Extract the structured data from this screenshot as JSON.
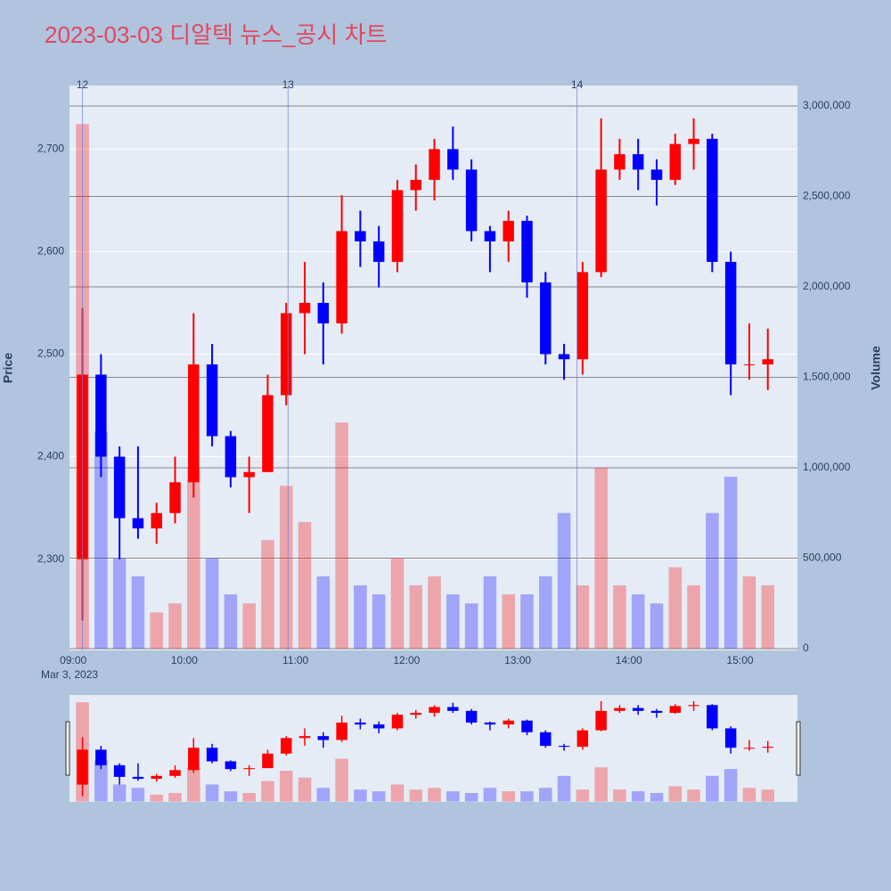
{
  "chart_data": {
    "type": "candlestick",
    "title": "2023-03-03 디알텍 뉴스_공시 차트",
    "y_title": "Price",
    "y2_title": "Volume",
    "x_date_label": "Mar 3, 2023",
    "increasing_color": "#ff0000",
    "decreasing_color": "#0000ff",
    "background": "#b0c4de",
    "plot_background": "#e5ecf6",
    "grid": true,
    "range_slider": true,
    "x": [
      "09:00",
      "09:10",
      "09:20",
      "09:30",
      "09:40",
      "09:50",
      "10:00",
      "10:10",
      "10:20",
      "10:30",
      "10:40",
      "10:50",
      "11:00",
      "11:10",
      "11:20",
      "11:30",
      "11:40",
      "11:50",
      "12:00",
      "12:10",
      "12:20",
      "12:30",
      "12:40",
      "12:50",
      "13:00",
      "13:10",
      "13:20",
      "13:30",
      "13:40",
      "13:50",
      "14:00",
      "14:10",
      "14:20",
      "14:30",
      "14:40",
      "14:50",
      "15:00",
      "15:10"
    ],
    "open": [
      2300,
      2480,
      2400,
      2340,
      2330,
      2345,
      2375,
      2490,
      2420,
      2380,
      2385,
      2460,
      2540,
      2550,
      2530,
      2620,
      2610,
      2590,
      2660,
      2670,
      2700,
      2680,
      2620,
      2610,
      2630,
      2570,
      2500,
      2495,
      2580,
      2680,
      2695,
      2680,
      2670,
      2705,
      2710,
      2590,
      2490,
      2490
    ],
    "high": [
      2545,
      2500,
      2410,
      2410,
      2355,
      2400,
      2540,
      2510,
      2425,
      2400,
      2480,
      2550,
      2590,
      2570,
      2655,
      2640,
      2625,
      2670,
      2685,
      2710,
      2722,
      2690,
      2625,
      2640,
      2635,
      2580,
      2510,
      2590,
      2730,
      2710,
      2710,
      2690,
      2715,
      2730,
      2715,
      2600,
      2530,
      2525
    ],
    "low": [
      2240,
      2380,
      2300,
      2320,
      2315,
      2335,
      2360,
      2410,
      2370,
      2345,
      2385,
      2450,
      2500,
      2490,
      2520,
      2585,
      2565,
      2580,
      2640,
      2650,
      2670,
      2610,
      2580,
      2590,
      2555,
      2490,
      2475,
      2480,
      2575,
      2670,
      2660,
      2645,
      2665,
      2680,
      2580,
      2460,
      2475,
      2465
    ],
    "close": [
      2480,
      2400,
      2340,
      2330,
      2345,
      2375,
      2490,
      2420,
      2380,
      2385,
      2460,
      2540,
      2550,
      2530,
      2620,
      2610,
      2590,
      2660,
      2670,
      2700,
      2680,
      2620,
      2610,
      2630,
      2570,
      2500,
      2495,
      2580,
      2680,
      2695,
      2680,
      2670,
      2705,
      2710,
      2590,
      2490,
      2490,
      2495
    ],
    "volume": [
      2900000,
      1200000,
      500000,
      400000,
      200000,
      250000,
      1000000,
      500000,
      300000,
      250000,
      600000,
      900000,
      700000,
      400000,
      1250000,
      350000,
      300000,
      500000,
      350000,
      400000,
      300000,
      250000,
      400000,
      300000,
      300000,
      400000,
      750000,
      350000,
      1000000,
      350000,
      300000,
      250000,
      450000,
      350000,
      750000,
      950000,
      400000,
      350000
    ],
    "markers": [
      {
        "x": "09:05",
        "label": "12"
      },
      {
        "x": "10:56",
        "label": "13"
      },
      {
        "x": "13:32",
        "label": "14"
      }
    ],
    "xlim": [
      "08:58",
      "15:31"
    ],
    "xticks": [
      "09:00",
      "10:00",
      "11:00",
      "12:00",
      "13:00",
      "14:00",
      "15:00"
    ],
    "ylim": [
      2211,
      2762
    ],
    "yticks": [
      {
        "value": 2300,
        "label": "2,300"
      },
      {
        "value": 2400,
        "label": "2,400"
      },
      {
        "value": 2500,
        "label": "2,500"
      },
      {
        "value": 2600,
        "label": "2,600"
      },
      {
        "value": 2700,
        "label": "2,700"
      }
    ],
    "y2lim": [
      -10000,
      3113000
    ],
    "y2ticks": [
      0,
      {
        "value": 500000,
        "label": "500,000"
      },
      {
        "value": 1000000,
        "label": "1,000,000"
      },
      {
        "value": 1500000,
        "label": "1,500,000"
      },
      {
        "value": 2000000,
        "label": "2,000,000"
      },
      {
        "value": 2500000,
        "label": "2,500,000"
      },
      {
        "value": 3000000,
        "label": "3,000,000"
      }
    ]
  }
}
